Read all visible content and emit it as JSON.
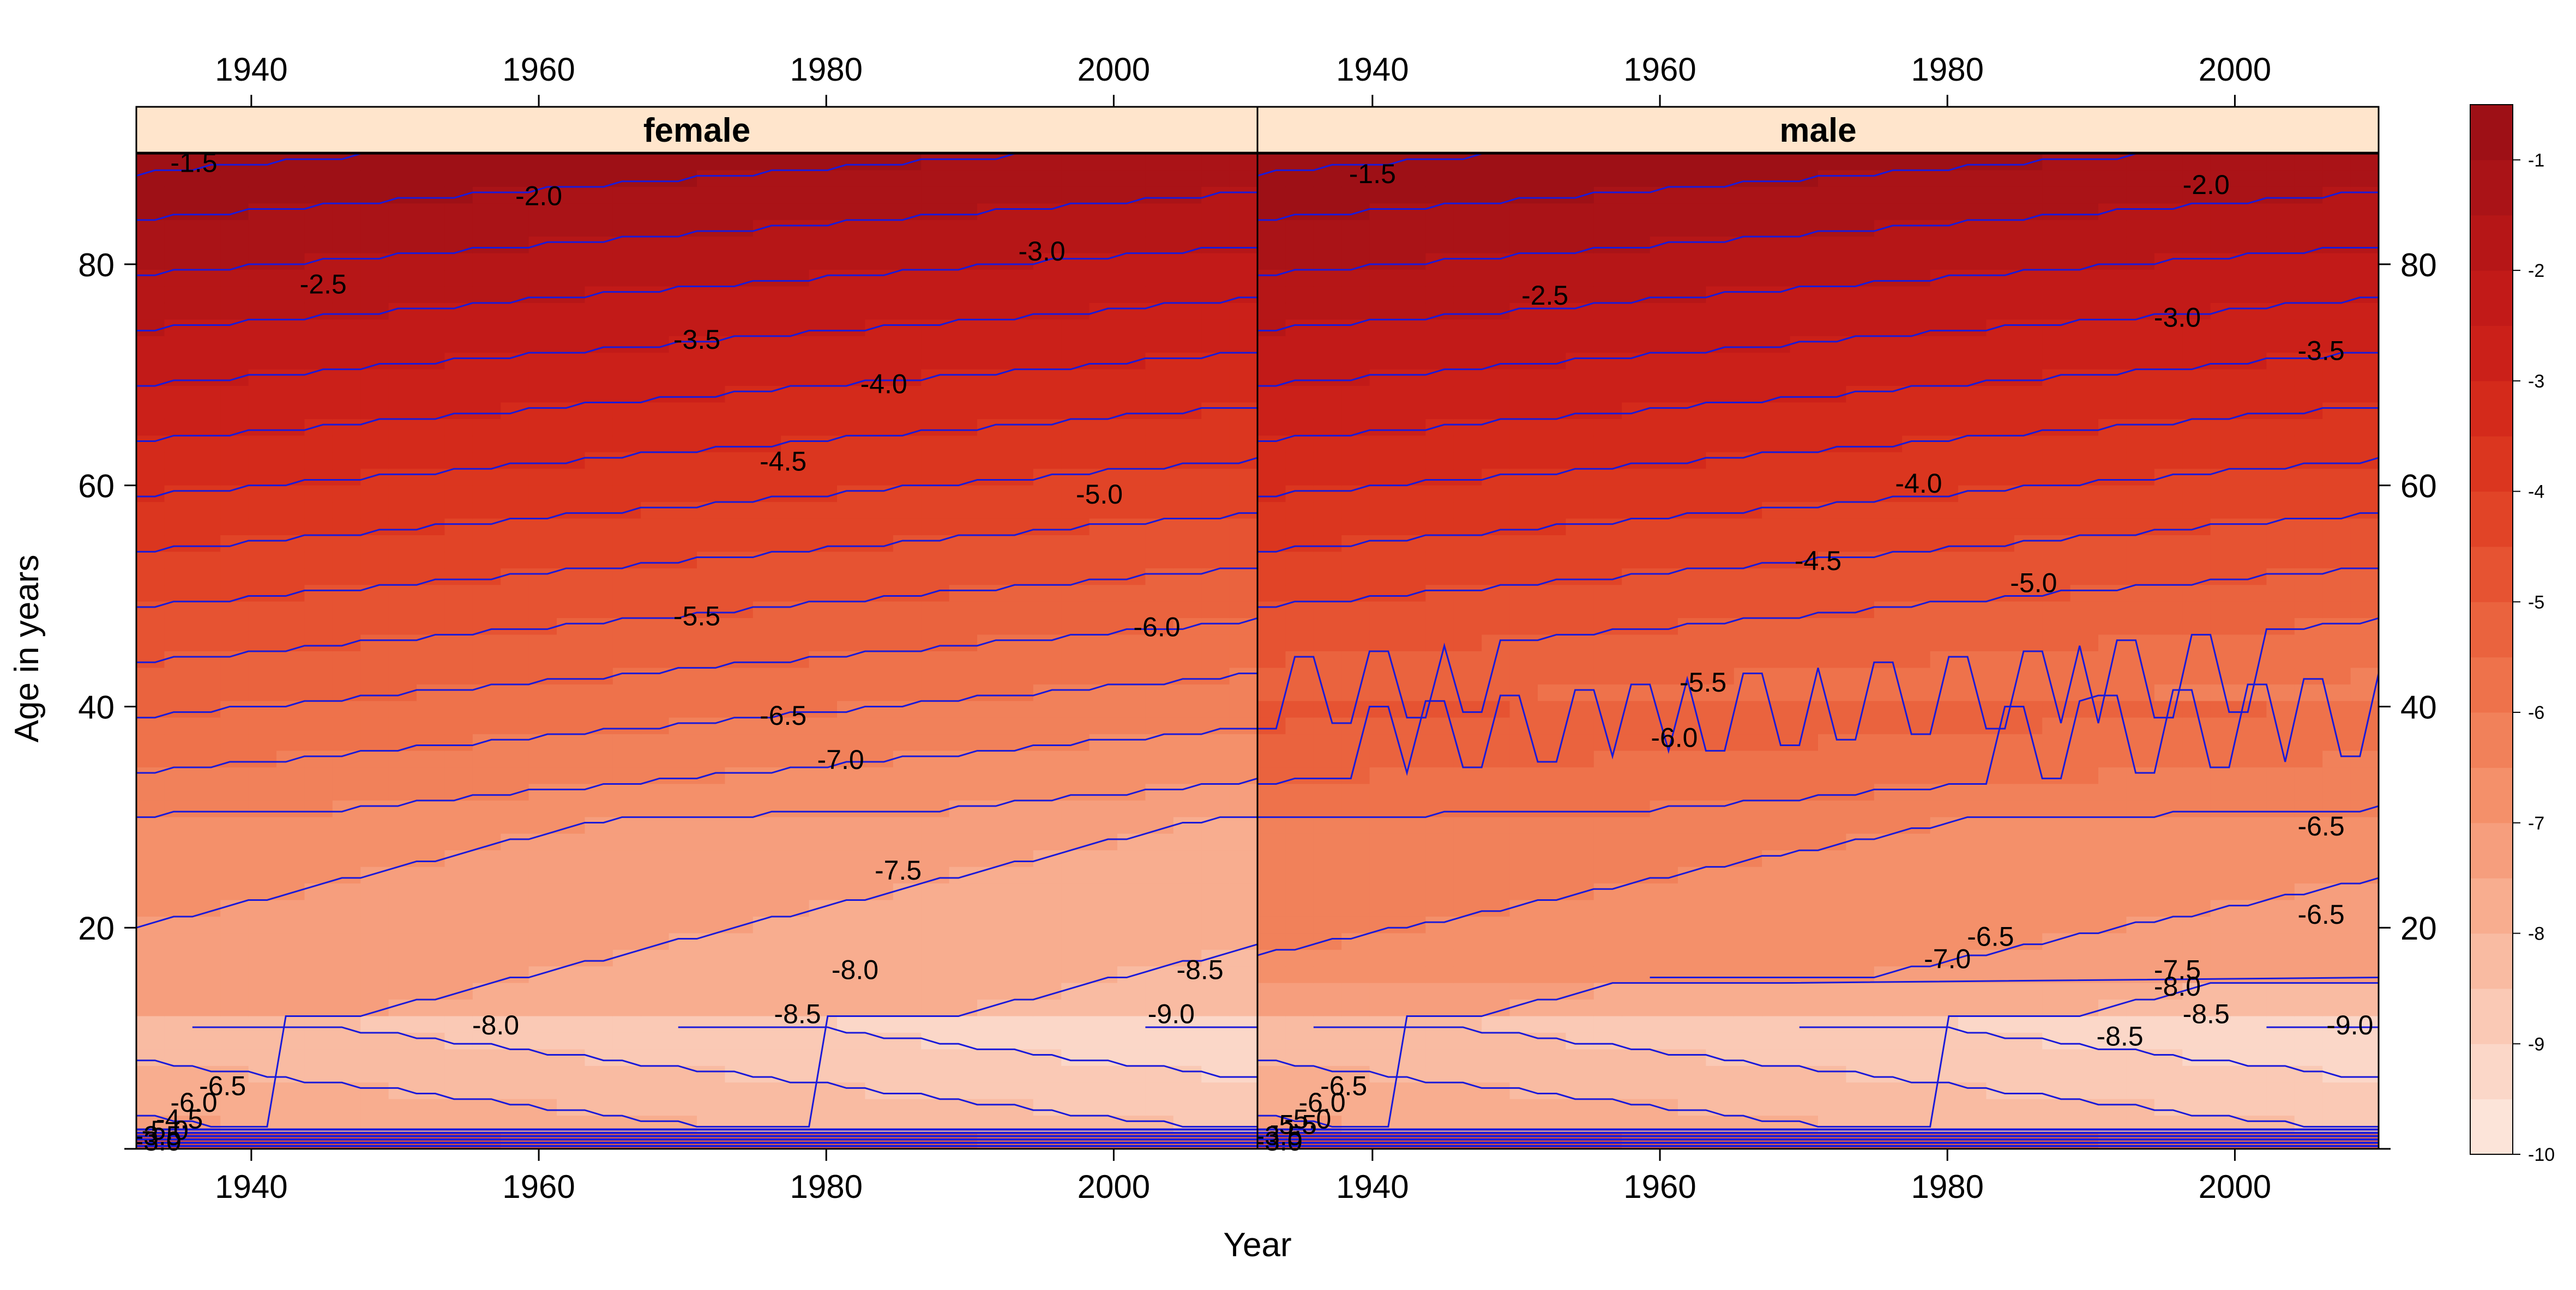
{
  "chart_data": {
    "type": "heatmap",
    "subtype": "filled-contour",
    "panels": [
      {
        "name": "female",
        "contour_labels": [
          {
            "year": 1936,
            "age": 89,
            "text": "-1.5"
          },
          {
            "year": 1960,
            "age": 86,
            "text": "-2.0"
          },
          {
            "year": 1945,
            "age": 78,
            "text": "-2.5"
          },
          {
            "year": 1995,
            "age": 81,
            "text": "-3.0"
          },
          {
            "year": 1971,
            "age": 73,
            "text": "-3.5"
          },
          {
            "year": 1984,
            "age": 69,
            "text": "-4.0"
          },
          {
            "year": 1977,
            "age": 62,
            "text": "-4.5"
          },
          {
            "year": 1999,
            "age": 59,
            "text": "-5.0"
          },
          {
            "year": 1971,
            "age": 48,
            "text": "-5.5"
          },
          {
            "year": 2003,
            "age": 47,
            "text": "-6.0"
          },
          {
            "year": 1977,
            "age": 39,
            "text": "-6.5"
          },
          {
            "year": 1981,
            "age": 35,
            "text": "-7.0"
          },
          {
            "year": 1985,
            "age": 25,
            "text": "-7.5"
          },
          {
            "year": 1982,
            "age": 16,
            "text": "-8.0"
          },
          {
            "year": 2006,
            "age": 16,
            "text": "-8.5"
          },
          {
            "year": 1978,
            "age": 12,
            "text": "-8.5"
          },
          {
            "year": 2004,
            "age": 12,
            "text": "-9.0"
          },
          {
            "year": 1957,
            "age": 11,
            "text": "-8.0"
          },
          {
            "year": 1938,
            "age": 5.5,
            "text": "-6.5"
          },
          {
            "year": 1936,
            "age": 4,
            "text": "-6.0"
          },
          {
            "year": 1935,
            "age": 2.5,
            "text": "-4.5"
          },
          {
            "year": 1934,
            "age": 1.5,
            "text": "-5.0"
          },
          {
            "year": 1933.5,
            "age": 1,
            "text": "-3.5"
          },
          {
            "year": 1933.5,
            "age": 0.5,
            "text": "-3.0"
          }
        ]
      },
      {
        "name": "male",
        "contour_labels": [
          {
            "year": 1940,
            "age": 88,
            "text": "-1.5"
          },
          {
            "year": 1998,
            "age": 87,
            "text": "-2.0"
          },
          {
            "year": 1952,
            "age": 77,
            "text": "-2.5"
          },
          {
            "year": 1996,
            "age": 75,
            "text": "-3.0"
          },
          {
            "year": 2006,
            "age": 72,
            "text": "-3.5"
          },
          {
            "year": 1978,
            "age": 60,
            "text": "-4.0"
          },
          {
            "year": 1971,
            "age": 53,
            "text": "-4.5"
          },
          {
            "year": 1986,
            "age": 51,
            "text": "-5.0"
          },
          {
            "year": 1963,
            "age": 42,
            "text": "-5.5"
          },
          {
            "year": 1961,
            "age": 37,
            "text": "-6.0"
          },
          {
            "year": 2006,
            "age": 29,
            "text": "-6.5"
          },
          {
            "year": 2006,
            "age": 21,
            "text": "-6.5"
          },
          {
            "year": 1983,
            "age": 19,
            "text": "-6.5"
          },
          {
            "year": 1980,
            "age": 17,
            "text": "-7.0"
          },
          {
            "year": 1996,
            "age": 16,
            "text": "-7.5"
          },
          {
            "year": 1996,
            "age": 14.5,
            "text": "-8.0"
          },
          {
            "year": 1998,
            "age": 12,
            "text": "-8.5"
          },
          {
            "year": 1992,
            "age": 10,
            "text": "-8.5"
          },
          {
            "year": 2008,
            "age": 11,
            "text": "-9.0"
          },
          {
            "year": 1938,
            "age": 5.5,
            "text": "-6.5"
          },
          {
            "year": 1936.5,
            "age": 4,
            "text": "-6.0"
          },
          {
            "year": 1935.5,
            "age": 2.5,
            "text": "-5.0"
          },
          {
            "year": 1934.5,
            "age": 2,
            "text": "-5.5"
          },
          {
            "year": 1933.5,
            "age": 1,
            "text": "-3.5"
          },
          {
            "year": 1933.5,
            "age": 0.5,
            "text": "-3.0"
          }
        ]
      }
    ],
    "xlabel": "Year",
    "ylabel": "Age in years",
    "xlim": [
      1932,
      2010
    ],
    "ylim": [
      0,
      90
    ],
    "xticks": [
      1940,
      1960,
      1980,
      2000
    ],
    "yticks": [
      20,
      40,
      60,
      80
    ],
    "contour_levels": [
      -10,
      -9.5,
      -9,
      -8.5,
      -8,
      -7.5,
      -7,
      -6.5,
      -6,
      -5.5,
      -5,
      -4.5,
      -4,
      -3.5,
      -3,
      -2.5,
      -2,
      -1.5,
      -1,
      -0.5
    ],
    "colorbar": {
      "min": -10,
      "max": -0.5,
      "ticks": [
        -1,
        -2,
        -3,
        -4,
        -5,
        -6,
        -7,
        -8,
        -9,
        -10
      ],
      "colors": [
        "#FCE4D9",
        "#FBD7C8",
        "#FAC9B5",
        "#F9BBA2",
        "#F8AD8F",
        "#F69E7D",
        "#F4906A",
        "#F1815A",
        "#EE724B",
        "#EA633E",
        "#E65332",
        "#E14427",
        "#DB361F",
        "#D42A1B",
        "#CB2019",
        "#C21A18",
        "#B61617",
        "#AA1317",
        "#9E1016"
      ]
    },
    "contour_line_color": "#1A1AD9",
    "strip_color": "#FFE5CC",
    "grid": false
  }
}
